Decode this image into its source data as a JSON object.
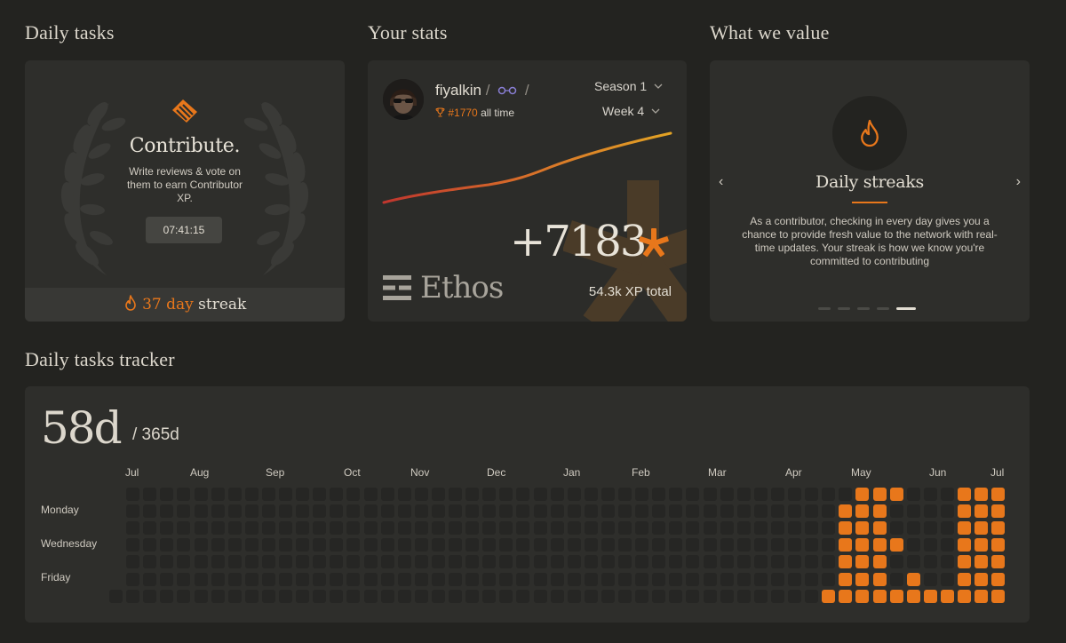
{
  "sections": {
    "daily_tasks": "Daily tasks",
    "your_stats": "Your stats",
    "what_we_value": "What we value",
    "tracker": "Daily tasks tracker"
  },
  "daily": {
    "title": "Contribute.",
    "description": "Write reviews & vote on them to earn Contributor XP.",
    "timer": "07:41:15",
    "streak_count": "37 day",
    "streak_word": "streak"
  },
  "stats": {
    "username": "fiyalkin",
    "sep1": "/",
    "sep2": "/",
    "rank": "#1770",
    "rank_suffix": "all time",
    "season": "Season 1",
    "week": "Week 4",
    "xp_gain": "+7183",
    "logo_word": "Ethos",
    "xp_total": "54.3k XP total"
  },
  "value": {
    "title": "Daily streaks",
    "body": "As a contributor, checking in every day gives you a chance to provide fresh value to the network with real-time updates. Your streak is how we know you're committed to contributing",
    "prev": "‹",
    "next": "›",
    "slides": 5,
    "active_slide": 4
  },
  "tracker": {
    "days": "58d",
    "total": "/ 365d",
    "months": [
      "Jul",
      "Aug",
      "Sep",
      "Oct",
      "Nov",
      "Dec",
      "Jan",
      "Feb",
      "Mar",
      "Apr",
      "May",
      "Jun",
      "Jul"
    ],
    "day_labels": [
      "Monday",
      "Wednesday",
      "Friday"
    ]
  },
  "colors": {
    "accent": "#e8771b",
    "background": "#232320",
    "card": "#2e2e2b"
  }
}
